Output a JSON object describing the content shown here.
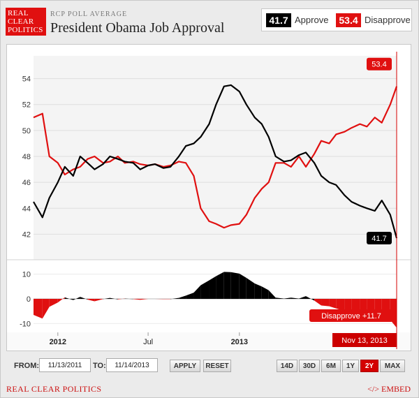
{
  "header": {
    "logo_lines": [
      "REAL",
      "CLEAR",
      "POLITICS"
    ],
    "kicker": "RCP POLL AVERAGE",
    "title": "President Obama Job Approval"
  },
  "summary": {
    "approve_value": "41.7",
    "approve_label": "Approve",
    "disapprove_value": "53.4",
    "disapprove_label": "Disapprove"
  },
  "colors": {
    "approve": "#000000",
    "disapprove": "#e01010",
    "accent": "#cc0000"
  },
  "controls": {
    "from_label": "FROM:",
    "from_value": "11/13/2011",
    "to_label": "TO:",
    "to_value": "11/14/2013",
    "apply_label": "APPLY",
    "reset_label": "RESET",
    "ranges": [
      "14D",
      "30D",
      "6M",
      "1Y",
      "2Y",
      "MAX"
    ],
    "active_range": "2Y"
  },
  "footer": {
    "brand": "REAL CLEAR POLITICS",
    "embed": "</> EMBED"
  },
  "chart_data": [
    {
      "type": "line",
      "x_ticks": [
        "2012",
        "Jul",
        "2013"
      ],
      "ylim": [
        41,
        55
      ],
      "y_ticks": [
        42,
        44,
        46,
        48,
        50,
        52,
        54
      ],
      "grid": true,
      "x": [
        "2011-11-13",
        "2011-12-01",
        "2011-12-15",
        "2012-01-01",
        "2012-01-15",
        "2012-02-01",
        "2012-02-15",
        "2012-03-01",
        "2012-03-15",
        "2012-04-01",
        "2012-04-15",
        "2012-05-01",
        "2012-05-15",
        "2012-06-01",
        "2012-06-15",
        "2012-07-01",
        "2012-07-15",
        "2012-08-01",
        "2012-08-15",
        "2012-09-01",
        "2012-09-15",
        "2012-10-01",
        "2012-10-15",
        "2012-11-01",
        "2012-11-15",
        "2012-12-01",
        "2012-12-15",
        "2013-01-01",
        "2013-01-15",
        "2013-02-01",
        "2013-02-15",
        "2013-03-01",
        "2013-03-15",
        "2013-04-01",
        "2013-04-15",
        "2013-05-01",
        "2013-05-15",
        "2013-06-01",
        "2013-06-15",
        "2013-07-01",
        "2013-07-15",
        "2013-08-01",
        "2013-08-15",
        "2013-09-01",
        "2013-09-15",
        "2013-10-01",
        "2013-10-15",
        "2013-11-01",
        "2013-11-14"
      ],
      "series": [
        {
          "name": "Approve",
          "color": "#000000",
          "values": [
            44.5,
            43.3,
            44.8,
            46.0,
            47.2,
            46.5,
            48.0,
            47.5,
            47.0,
            47.4,
            48.0,
            47.8,
            47.6,
            47.5,
            47.0,
            47.3,
            47.4,
            47.1,
            47.2,
            48.0,
            48.8,
            49.0,
            49.5,
            50.5,
            52.0,
            53.4,
            53.5,
            53.0,
            52.0,
            51.0,
            50.5,
            49.5,
            48.0,
            47.6,
            47.7,
            48.1,
            48.3,
            47.5,
            46.5,
            46.0,
            45.8,
            45.0,
            44.5,
            44.2,
            44.0,
            43.8,
            44.6,
            43.5,
            41.7
          ]
        },
        {
          "name": "Disapprove",
          "color": "#e01010",
          "values": [
            51.0,
            51.3,
            48.0,
            47.5,
            46.6,
            47.0,
            47.2,
            47.8,
            48.0,
            47.5,
            47.6,
            48.0,
            47.5,
            47.6,
            47.4,
            47.3,
            47.4,
            47.2,
            47.3,
            47.6,
            47.5,
            46.5,
            44.0,
            43.0,
            42.8,
            42.5,
            42.7,
            42.8,
            43.5,
            44.8,
            45.5,
            46.0,
            47.5,
            47.5,
            47.2,
            48.0,
            47.2,
            48.2,
            49.2,
            49.0,
            49.7,
            49.9,
            50.2,
            50.5,
            50.3,
            51.0,
            50.6,
            52.0,
            53.4
          ]
        }
      ],
      "labels": [
        {
          "series": "Disapprove",
          "text": "53.4"
        },
        {
          "series": "Approve",
          "text": "41.7"
        }
      ]
    },
    {
      "type": "area",
      "x_ticks": [
        "2012",
        "Jul",
        "2013"
      ],
      "ylim": [
        -13,
        13
      ],
      "y_ticks": [
        10,
        0,
        -10
      ],
      "name": "Spread",
      "values": [
        -6.5,
        -8.0,
        -3.2,
        -1.5,
        0.6,
        -0.5,
        0.8,
        -0.3,
        -1.0,
        -0.1,
        0.4,
        -0.2,
        0.1,
        -0.1,
        -0.4,
        0.0,
        0.0,
        -0.1,
        -0.1,
        0.4,
        1.3,
        2.5,
        5.5,
        7.5,
        9.2,
        10.9,
        10.8,
        10.2,
        8.5,
        6.2,
        5.0,
        3.5,
        0.5,
        0.1,
        0.5,
        0.1,
        1.1,
        -0.7,
        -2.7,
        -3.0,
        -3.9,
        -4.9,
        -5.7,
        -6.3,
        -6.3,
        -7.2,
        -6.0,
        -8.5,
        -11.7
      ],
      "annotations": [
        "Disapprove +11.7",
        "Nov 13, 2013"
      ]
    }
  ]
}
